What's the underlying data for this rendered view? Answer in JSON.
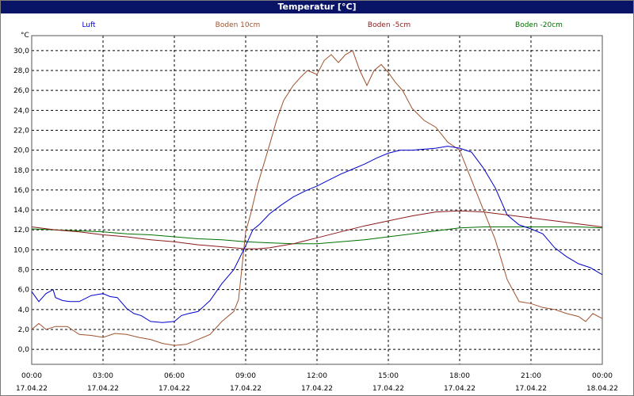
{
  "window": {
    "title": "Temperatur [°C]"
  },
  "chart_data": {
    "type": "line",
    "title": "Temperatur [°C]",
    "ylabel": "°C",
    "ylim": [
      -1.5,
      31.5
    ],
    "xlim": [
      0,
      24
    ],
    "grid": true,
    "yticks": [
      "0,0",
      "2,0",
      "4,0",
      "6,0",
      "8,0",
      "10,0",
      "12,0",
      "14,0",
      "16,0",
      "18,0",
      "20,0",
      "22,0",
      "24,0",
      "26,0",
      "28,0",
      "30,0"
    ],
    "xticks": [
      {
        "time": "00:00",
        "date": "17.04.22"
      },
      {
        "time": "03:00",
        "date": "17.04.22"
      },
      {
        "time": "06:00",
        "date": "17.04.22"
      },
      {
        "time": "09:00",
        "date": "17.04.22"
      },
      {
        "time": "12:00",
        "date": "17.04.22"
      },
      {
        "time": "15:00",
        "date": "17.04.22"
      },
      {
        "time": "18:00",
        "date": "17.04.22"
      },
      {
        "time": "21:00",
        "date": "17.04.22"
      },
      {
        "time": "00:00",
        "date": "18.04.22"
      }
    ],
    "legend_placement": "top",
    "series": [
      {
        "name": "Luft",
        "color": "#0000cc",
        "x": [
          0,
          0.3,
          0.6,
          0.9,
          1,
          1.3,
          1.6,
          2,
          2.5,
          3,
          3.3,
          3.6,
          4,
          4.3,
          4.6,
          5,
          5.5,
          6,
          6.3,
          6.6,
          7,
          7.5,
          8,
          8.5,
          9,
          9.3,
          9.6,
          10,
          10.5,
          11,
          11.5,
          12,
          12.5,
          13,
          13.5,
          14,
          14.5,
          15,
          15.5,
          16,
          16.5,
          17,
          17.5,
          18,
          18.5,
          19,
          19.5,
          20,
          20.5,
          21,
          21.5,
          22,
          22.5,
          23,
          23.5,
          24
        ],
        "y": [
          5.8,
          4.8,
          5.6,
          6.0,
          5.2,
          4.9,
          4.8,
          4.8,
          5.4,
          5.6,
          5.3,
          5.2,
          4.1,
          3.6,
          3.4,
          2.8,
          2.7,
          2.8,
          3.4,
          3.6,
          3.8,
          4.9,
          6.6,
          8.0,
          10.4,
          12.0,
          12.6,
          13.6,
          14.5,
          15.3,
          15.9,
          16.4,
          17.0,
          17.6,
          18.1,
          18.6,
          19.2,
          19.7,
          20.0,
          20.0,
          20.1,
          20.2,
          20.4,
          20.2,
          19.8,
          18.2,
          16.2,
          13.5,
          12.5,
          12.1,
          11.6,
          10.2,
          9.3,
          8.6,
          8.2,
          7.5
        ]
      },
      {
        "name": "Boden 10cm",
        "color": "#a0522d",
        "x": [
          0,
          0.3,
          0.6,
          1,
          1.5,
          2,
          2.5,
          3,
          3.5,
          4,
          4.5,
          5,
          5.5,
          6,
          6.5,
          7,
          7.5,
          8,
          8.5,
          8.7,
          9,
          9.2,
          9.5,
          10,
          10.3,
          10.6,
          11,
          11.3,
          11.6,
          12,
          12.3,
          12.6,
          12.9,
          13.2,
          13.5,
          13.8,
          14.1,
          14.4,
          14.7,
          15,
          15.3,
          15.6,
          16,
          16.5,
          17,
          17.5,
          18,
          18.5,
          19,
          19.5,
          20,
          20.5,
          21,
          21.5,
          22,
          22.5,
          23,
          23.3,
          23.6,
          24
        ],
        "y": [
          2.0,
          2.6,
          2.0,
          2.3,
          2.3,
          1.5,
          1.4,
          1.2,
          1.6,
          1.5,
          1.2,
          1.0,
          0.6,
          0.4,
          0.5,
          1.0,
          1.5,
          2.8,
          3.8,
          5.0,
          11.8,
          13.5,
          16.5,
          20.5,
          23.0,
          25.0,
          26.5,
          27.3,
          28.0,
          27.6,
          29.0,
          29.6,
          28.8,
          29.6,
          30.0,
          28.0,
          26.5,
          28.0,
          28.6,
          27.8,
          26.8,
          26.0,
          24.2,
          23.0,
          22.3,
          20.8,
          20.0,
          17.0,
          14.0,
          11.0,
          7.0,
          4.8,
          4.6,
          4.2,
          4.0,
          3.6,
          3.3,
          2.8,
          3.6,
          3.1
        ]
      },
      {
        "name": "Boden -5cm",
        "color": "#8b1a1a",
        "x": [
          0,
          1,
          2,
          3,
          4,
          5,
          6,
          7,
          8,
          9,
          9.5,
          10,
          11,
          12,
          13,
          14,
          15,
          16,
          17,
          18,
          19,
          20,
          21,
          22,
          23,
          24
        ],
        "y": [
          12.3,
          12.0,
          11.8,
          11.5,
          11.3,
          11.0,
          10.8,
          10.5,
          10.3,
          10.1,
          10.1,
          10.2,
          10.6,
          11.2,
          11.8,
          12.4,
          12.9,
          13.4,
          13.8,
          13.9,
          13.8,
          13.5,
          13.2,
          12.9,
          12.6,
          12.3
        ]
      },
      {
        "name": "Boden -20cm",
        "color": "#007000",
        "x": [
          0,
          1,
          2,
          3,
          4,
          5,
          6,
          7,
          8,
          9,
          10,
          11,
          12,
          13,
          14,
          15,
          16,
          17,
          18,
          19,
          20,
          21,
          22,
          23,
          24
        ],
        "y": [
          12.1,
          12.0,
          11.9,
          11.8,
          11.6,
          11.5,
          11.3,
          11.1,
          11.0,
          10.8,
          10.7,
          10.6,
          10.6,
          10.8,
          11.0,
          11.3,
          11.6,
          11.9,
          12.2,
          12.3,
          12.3,
          12.3,
          12.3,
          12.3,
          12.2
        ]
      }
    ]
  }
}
